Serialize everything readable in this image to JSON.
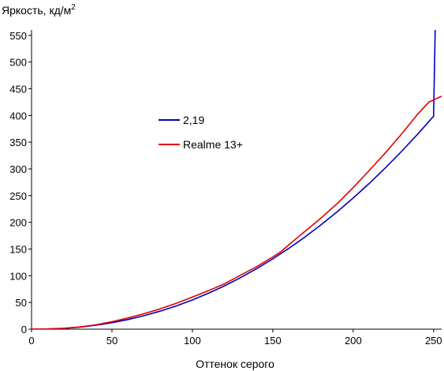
{
  "chart_data": {
    "type": "line",
    "ylabel": "Яркость, кд/м",
    "ylabel_sup": "2",
    "xlabel": "Оттенок серого",
    "xlim": [
      0,
      255
    ],
    "ylim": [
      0,
      560
    ],
    "x_ticks": [
      0,
      50,
      100,
      150,
      200,
      250
    ],
    "y_ticks": [
      0,
      50,
      100,
      150,
      200,
      250,
      300,
      350,
      400,
      450,
      500,
      550
    ],
    "grid": false,
    "legend_position": "left-middle",
    "series": [
      {
        "name": "2,19",
        "color": "#0000c0",
        "x": [
          0,
          10,
          20,
          30,
          40,
          50,
          60,
          70,
          80,
          90,
          100,
          110,
          120,
          130,
          140,
          150,
          160,
          170,
          180,
          190,
          200,
          210,
          220,
          230,
          240,
          250,
          251
        ],
        "y": [
          0,
          0.4,
          1.6,
          3.9,
          7.4,
          12.1,
          18,
          25.2,
          33.7,
          43.5,
          54.6,
          67.2,
          81.1,
          96.5,
          113.3,
          131.5,
          151.3,
          172.5,
          195.3,
          219.6,
          245.4,
          272.8,
          301.8,
          332.4,
          364.7,
          398.6,
          560
        ]
      },
      {
        "name": "Realme 13+",
        "color": "#e00000",
        "x": [
          0,
          10,
          20,
          30,
          40,
          50,
          60,
          70,
          80,
          90,
          100,
          110,
          120,
          125,
          130,
          140,
          150,
          155,
          160,
          170,
          180,
          190,
          200,
          210,
          220,
          230,
          240,
          247,
          255
        ],
        "y": [
          0,
          0.3,
          1.6,
          4.2,
          8.2,
          14,
          21,
          29,
          38,
          48.5,
          60,
          72,
          85,
          93,
          101,
          117,
          135,
          145,
          158,
          183,
          208,
          235,
          265,
          297,
          330,
          365,
          402,
          425,
          436
        ]
      }
    ]
  }
}
